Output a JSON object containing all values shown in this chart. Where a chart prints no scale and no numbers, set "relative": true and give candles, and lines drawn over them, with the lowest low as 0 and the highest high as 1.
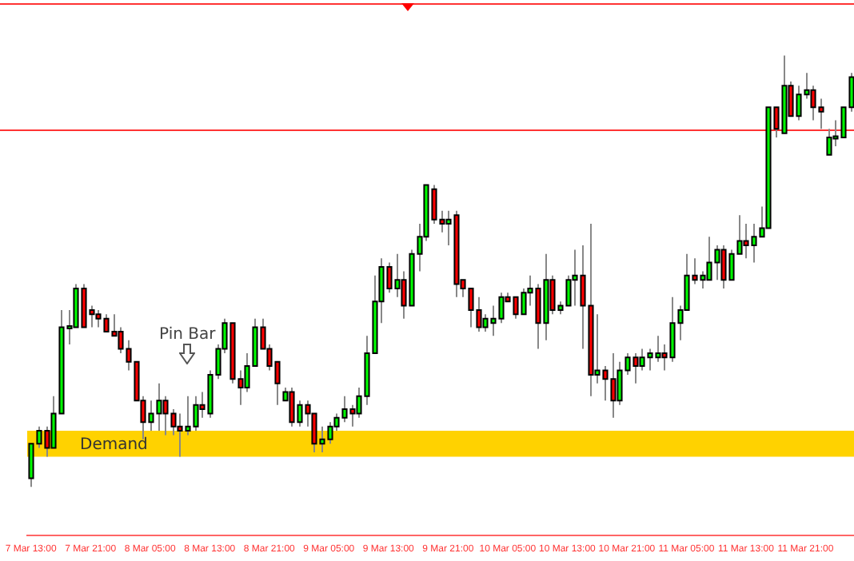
{
  "chart_data": {
    "type": "candlestick",
    "relative": true,
    "legend": false,
    "grid": false,
    "tick_labels": "x",
    "categories": [
      "7 Mar 13:00",
      null,
      null,
      null,
      null,
      null,
      null,
      null,
      "7 Mar 21:00",
      null,
      null,
      null,
      null,
      null,
      null,
      null,
      "8 Mar 05:00",
      null,
      null,
      null,
      null,
      null,
      null,
      null,
      "8 Mar 13:00",
      null,
      null,
      null,
      null,
      null,
      null,
      null,
      "8 Mar 21:00",
      null,
      null,
      null,
      null,
      null,
      null,
      null,
      "9 Mar 05:00",
      null,
      null,
      null,
      null,
      null,
      null,
      null,
      "9 Mar 13:00",
      null,
      null,
      null,
      null,
      null,
      null,
      null,
      "9 Mar 21:00",
      null,
      null,
      null,
      null,
      null,
      null,
      null,
      "10 Mar 05:00",
      null,
      null,
      null,
      null,
      null,
      null,
      null,
      "10 Mar 13:00",
      null,
      null,
      null,
      null,
      null,
      null,
      null,
      "10 Mar 21:00",
      null,
      null,
      null,
      null,
      null,
      null,
      null,
      "11 Mar 05:00",
      null,
      null,
      null,
      null,
      null,
      null,
      null,
      "11 Mar 13:00",
      null,
      null,
      null,
      null,
      null,
      null,
      null,
      "11 Mar 21:00",
      null,
      null,
      null,
      null,
      null,
      null
    ],
    "ohlc": [
      [
        0.02,
        0.1,
        0,
        0.1
      ],
      [
        0.1,
        0.14,
        0.09,
        0.13
      ],
      [
        0.13,
        0.14,
        0.07,
        0.09
      ],
      [
        0.09,
        0.21,
        0.09,
        0.17
      ],
      [
        0.17,
        0.41,
        0.17,
        0.37
      ],
      [
        0.37,
        0.41,
        0.33,
        0.37
      ],
      [
        0.37,
        0.47,
        0.37,
        0.46
      ],
      [
        0.46,
        0.47,
        0.37,
        0.37
      ],
      [
        0.41,
        0.42,
        0.37,
        0.4
      ],
      [
        0.4,
        0.41,
        0.37,
        0.39
      ],
      [
        0.39,
        0.4,
        0.36,
        0.36
      ],
      [
        0.36,
        0.4,
        0.35,
        0.35
      ],
      [
        0.36,
        0.37,
        0.31,
        0.32
      ],
      [
        0.32,
        0.34,
        0.27,
        0.29
      ],
      [
        0.29,
        0.29,
        0.2,
        0.2
      ],
      [
        0.2,
        0.21,
        0.11,
        0.15
      ],
      [
        0.15,
        0.2,
        0.13,
        0.17
      ],
      [
        0.17,
        0.24,
        0.13,
        0.2
      ],
      [
        0.2,
        0.21,
        0.12,
        0.17
      ],
      [
        0.17,
        0.18,
        0.12,
        0.14
      ],
      [
        0.14,
        0.17,
        0.07,
        0.13
      ],
      [
        0.13,
        0.21,
        0.12,
        0.14
      ],
      [
        0.14,
        0.21,
        0.13,
        0.19
      ],
      [
        0.19,
        0.22,
        0.16,
        0.18
      ],
      [
        0.17,
        0.27,
        0.16,
        0.26
      ],
      [
        0.26,
        0.33,
        0.25,
        0.32
      ],
      [
        0.32,
        0.39,
        0.31,
        0.38
      ],
      [
        0.38,
        0.38,
        0.24,
        0.25
      ],
      [
        0.25,
        0.27,
        0.19,
        0.23
      ],
      [
        0.23,
        0.31,
        0.22,
        0.28
      ],
      [
        0.28,
        0.39,
        0.28,
        0.37
      ],
      [
        0.37,
        0.39,
        0.32,
        0.32
      ],
      [
        0.32,
        0.33,
        0.27,
        0.28
      ],
      [
        0.29,
        0.29,
        0.19,
        0.24
      ],
      [
        0.2,
        0.23,
        0.2,
        0.22
      ],
      [
        0.22,
        0.23,
        0.14,
        0.15
      ],
      [
        0.15,
        0.2,
        0.14,
        0.19
      ],
      [
        0.19,
        0.2,
        0.14,
        0.17
      ],
      [
        0.17,
        0.17,
        0.08,
        0.1
      ],
      [
        0.1,
        0.14,
        0.08,
        0.11
      ],
      [
        0.11,
        0.15,
        0.1,
        0.14
      ],
      [
        0.14,
        0.17,
        0.13,
        0.16
      ],
      [
        0.16,
        0.21,
        0.15,
        0.18
      ],
      [
        0.18,
        0.19,
        0.14,
        0.17
      ],
      [
        0.17,
        0.23,
        0.16,
        0.21
      ],
      [
        0.21,
        0.35,
        0.19,
        0.31
      ],
      [
        0.31,
        0.49,
        0.31,
        0.43
      ],
      [
        0.43,
        0.53,
        0.38,
        0.51
      ],
      [
        0.51,
        0.52,
        0.45,
        0.46
      ],
      [
        0.46,
        0.54,
        0.44,
        0.48
      ],
      [
        0.48,
        0.5,
        0.39,
        0.42
      ],
      [
        0.42,
        0.55,
        0.42,
        0.54
      ],
      [
        0.54,
        0.61,
        0.5,
        0.58
      ],
      [
        0.58,
        0.7,
        0.57,
        0.7
      ],
      [
        0.69,
        0.7,
        0.61,
        0.62
      ],
      [
        0.62,
        0.64,
        0.59,
        0.61
      ],
      [
        0.61,
        0.64,
        0.56,
        0.62
      ],
      [
        0.63,
        0.64,
        0.44,
        0.47
      ],
      [
        0.48,
        0.48,
        0.44,
        0.46
      ],
      [
        0.46,
        0.46,
        0.37,
        0.41
      ],
      [
        0.41,
        0.44,
        0.36,
        0.37
      ],
      [
        0.37,
        0.4,
        0.36,
        0.39
      ],
      [
        0.38,
        0.42,
        0.35,
        0.39
      ],
      [
        0.39,
        0.45,
        0.38,
        0.44
      ],
      [
        0.44,
        0.45,
        0.43,
        0.43
      ],
      [
        0.44,
        0.44,
        0.39,
        0.4
      ],
      [
        0.4,
        0.46,
        0.4,
        0.45
      ],
      [
        0.45,
        0.49,
        0.42,
        0.46
      ],
      [
        0.46,
        0.47,
        0.32,
        0.38
      ],
      [
        0.38,
        0.54,
        0.34,
        0.48
      ],
      [
        0.48,
        0.49,
        0.4,
        0.41
      ],
      [
        0.41,
        0.43,
        0.4,
        0.42
      ],
      [
        0.42,
        0.49,
        0.42,
        0.48
      ],
      [
        0.48,
        0.55,
        0.42,
        0.49
      ],
      [
        0.49,
        0.56,
        0.32,
        0.42
      ],
      [
        0.42,
        0.61,
        0.21,
        0.26
      ],
      [
        0.26,
        0.4,
        0.24,
        0.27
      ],
      [
        0.27,
        0.28,
        0.2,
        0.25
      ],
      [
        0.25,
        0.31,
        0.16,
        0.2
      ],
      [
        0.2,
        0.29,
        0.19,
        0.27
      ],
      [
        0.27,
        0.31,
        0.26,
        0.3
      ],
      [
        0.3,
        0.31,
        0.24,
        0.28
      ],
      [
        0.28,
        0.32,
        0.27,
        0.3
      ],
      [
        0.3,
        0.32,
        0.27,
        0.31
      ],
      [
        0.3,
        0.35,
        0.29,
        0.31
      ],
      [
        0.31,
        0.33,
        0.27,
        0.3
      ],
      [
        0.3,
        0.44,
        0.29,
        0.38
      ],
      [
        0.38,
        0.42,
        0.34,
        0.41
      ],
      [
        0.41,
        0.54,
        0.41,
        0.49
      ],
      [
        0.49,
        0.53,
        0.47,
        0.48
      ],
      [
        0.48,
        0.5,
        0.46,
        0.49
      ],
      [
        0.48,
        0.58,
        0.48,
        0.52
      ],
      [
        0.52,
        0.56,
        0.48,
        0.55
      ],
      [
        0.55,
        0.56,
        0.46,
        0.48
      ],
      [
        0.48,
        0.55,
        0.48,
        0.54
      ],
      [
        0.54,
        0.63,
        0.54,
        0.57
      ],
      [
        0.57,
        0.61,
        0.53,
        0.56
      ],
      [
        0.56,
        0.61,
        0.52,
        0.58
      ],
      [
        0.58,
        0.65,
        0.58,
        0.6
      ],
      [
        0.6,
        0.88,
        0.6,
        0.88
      ],
      [
        0.88,
        0.88,
        0.81,
        0.83
      ],
      [
        0.82,
        1,
        0.82,
        0.93
      ],
      [
        0.93,
        0.94,
        0.86,
        0.86
      ],
      [
        0.86,
        0.93,
        0.85,
        0.91
      ],
      [
        0.91,
        0.96,
        0.9,
        0.92
      ],
      [
        0.92,
        0.93,
        0.85,
        0.88
      ],
      [
        0.88,
        0.9,
        0.83,
        0.87
      ],
      [
        0.77,
        0.83,
        0.77,
        0.81
      ],
      [
        0.81,
        0.85,
        0.79,
        0.81
      ],
      [
        0.81,
        0.88,
        0.81,
        0.88
      ],
      [
        0.88,
        0.96,
        0.87,
        0.95
      ]
    ],
    "ref_lines": [
      {
        "axis": "y",
        "value": 0.83,
        "color": "#ff3333"
      },
      {
        "axis": "y",
        "value": 1.12,
        "color": "#ff3333"
      }
    ],
    "bands": [
      {
        "axis": "y",
        "from": 0.07,
        "to": 0.13,
        "label": "Demand",
        "color": "#ffd200"
      }
    ],
    "annotations": [
      "Pin Bar"
    ]
  }
}
